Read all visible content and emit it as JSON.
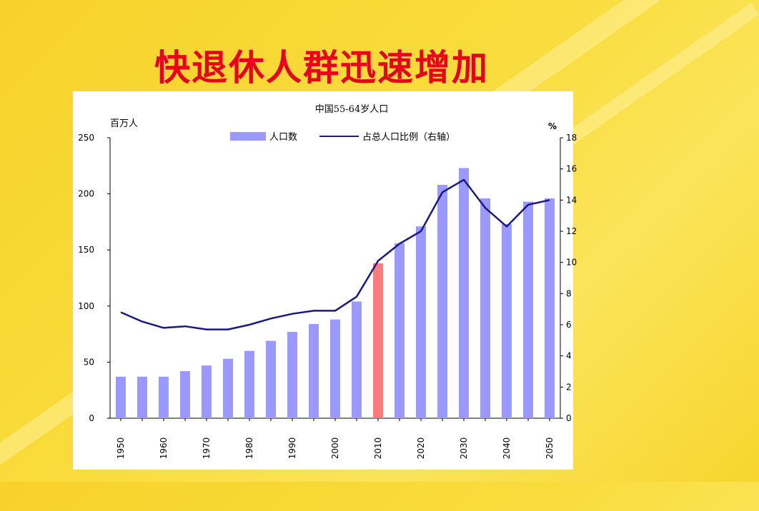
{
  "slide": {
    "title": "快退休人群迅速增加"
  },
  "chart_data": {
    "type": "bar+line",
    "title": "中国55-64岁人口",
    "ylabel_left": "百万人",
    "ylabel_right": "%",
    "legend": {
      "bar_label": "人口数",
      "line_label": "占总人口比例（右轴）",
      "placement": "top"
    },
    "ylim_left": [
      0,
      250
    ],
    "ylim_right": [
      0,
      18
    ],
    "yticks_left": [
      "0",
      "50",
      "100",
      "150",
      "200",
      "250"
    ],
    "yticks_right": [
      "0",
      "2",
      "4",
      "6",
      "8",
      "10",
      "12",
      "14",
      "16",
      "18"
    ],
    "x_tick_labels": [
      "1950",
      "1960",
      "1970",
      "1980",
      "1990",
      "2000",
      "2010",
      "2020",
      "2030",
      "2040",
      "2050"
    ],
    "x": [
      1950,
      1955,
      1960,
      1965,
      1970,
      1975,
      1980,
      1985,
      1990,
      1995,
      2000,
      2005,
      2010,
      2015,
      2020,
      2025,
      2030,
      2035,
      2040,
      2045,
      2050
    ],
    "series": [
      {
        "name": "人口数",
        "axis": "left",
        "kind": "bar",
        "values": [
          37,
          37,
          37,
          42,
          47,
          53,
          60,
          69,
          77,
          84,
          88,
          104,
          138,
          156,
          171,
          208,
          223,
          196,
          173,
          193,
          196
        ],
        "highlight_x": 2010
      },
      {
        "name": "占总人口比例（右轴）",
        "axis": "right",
        "kind": "line",
        "values": [
          6.8,
          6.2,
          5.8,
          5.9,
          5.7,
          5.7,
          6.0,
          6.4,
          6.7,
          6.9,
          6.9,
          7.8,
          10.1,
          11.2,
          12.0,
          14.5,
          15.3,
          13.5,
          12.3,
          13.7,
          14.0
        ]
      }
    ],
    "colors": {
      "bar": "#9999ff",
      "bar_highlight": "#ff7a7a",
      "line": "#1a1a80"
    }
  }
}
